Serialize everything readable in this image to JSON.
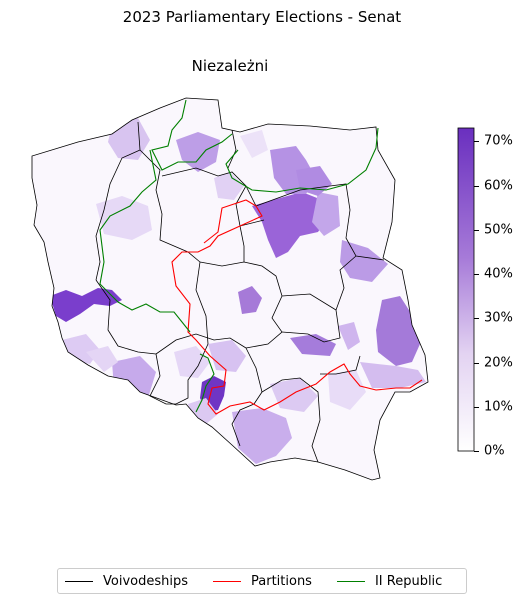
{
  "title": "2023 Parliamentary Elections - Senat",
  "subtitle": "Niezależni",
  "colorbar": {
    "ticks": [
      "0%",
      "10%",
      "20%",
      "30%",
      "40%",
      "50%",
      "60%",
      "70%"
    ],
    "max_value": 73,
    "color_low": "#ffffff",
    "color_high": "#6a2fbf"
  },
  "legend": [
    {
      "label": "Voivodeships",
      "color": "#000000"
    },
    {
      "label": "Partitions",
      "color": "#ff0000"
    },
    {
      "label": "II Republic",
      "color": "#008000"
    }
  ],
  "chart_data": {
    "type": "heatmap",
    "title": "2023 Parliamentary Elections - Senat",
    "subtitle": "Niezależni",
    "colorbar_range": [
      0,
      73
    ],
    "regions_high": [
      {
        "region": "Lubuskie/Dolnośląskie border",
        "value": 65
      },
      {
        "region": "Mazowieckie north (Ostrołęka–Ciechanów)",
        "value": 55
      },
      {
        "region": "Śląskie (Katowice area)",
        "value": 70
      },
      {
        "region": "Lubelskie east",
        "value": 45
      },
      {
        "region": "Podlaskie south",
        "value": 40
      },
      {
        "region": "Małopolskie south",
        "value": 40
      }
    ]
  }
}
